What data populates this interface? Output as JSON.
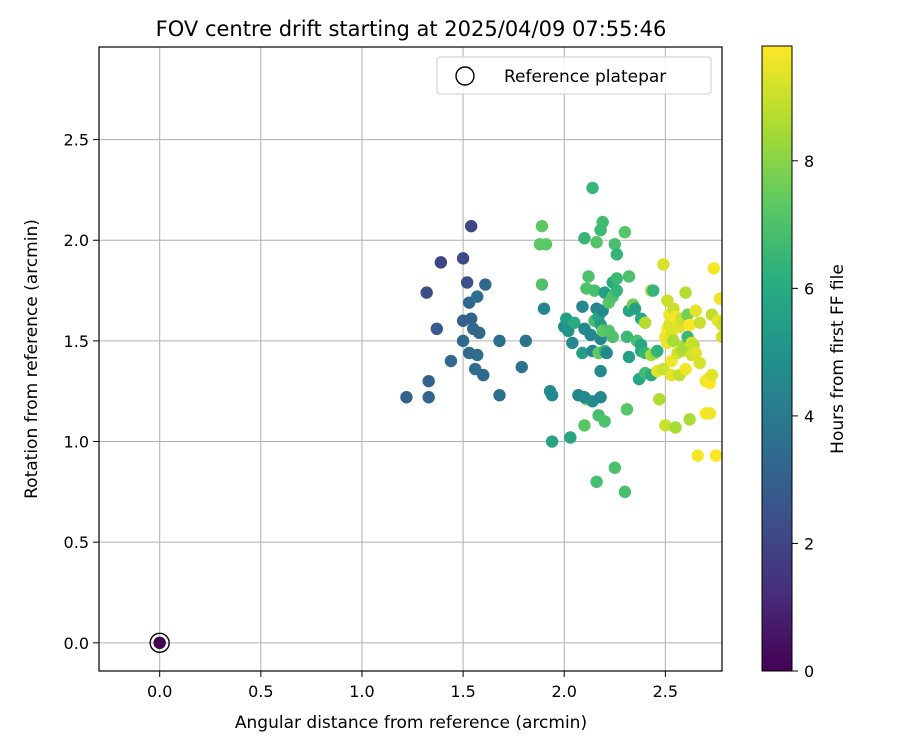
{
  "chart_data": {
    "type": "scatter",
    "title": "FOV centre drift starting at 2025/04/09 07:55:46",
    "xlabel": "Angular distance from reference (arcmin)",
    "ylabel": "Rotation from reference (arcmin)",
    "xlim": [
      -0.3,
      2.78
    ],
    "ylim": [
      -0.14,
      2.96
    ],
    "xticks": [
      "0.0",
      "0.5",
      "1.0",
      "1.5",
      "2.0",
      "2.5"
    ],
    "yticks": [
      "0.0",
      "0.5",
      "1.0",
      "1.5",
      "2.0",
      "2.5"
    ],
    "grid": true,
    "legend": {
      "position": "top-right",
      "entries": [
        "Reference platepar"
      ]
    },
    "colorbar": {
      "label": "Hours from first FF file",
      "min": 0,
      "max": 9.8,
      "ticks": [
        "0",
        "2",
        "4",
        "6",
        "8"
      ],
      "colormap": "viridis"
    },
    "reference": {
      "x": 0.0,
      "y": 0.0,
      "c": 0.0
    },
    "points": [
      {
        "x": 1.22,
        "y": 1.22,
        "c": 3.1
      },
      {
        "x": 1.32,
        "y": 1.74,
        "c": 2.3
      },
      {
        "x": 1.33,
        "y": 1.3,
        "c": 3.1
      },
      {
        "x": 1.33,
        "y": 1.22,
        "c": 3.2
      },
      {
        "x": 1.37,
        "y": 1.56,
        "c": 2.8
      },
      {
        "x": 1.39,
        "y": 1.89,
        "c": 2.0
      },
      {
        "x": 1.44,
        "y": 1.4,
        "c": 3.3
      },
      {
        "x": 1.5,
        "y": 1.91,
        "c": 2.2
      },
      {
        "x": 1.5,
        "y": 1.6,
        "c": 3.0
      },
      {
        "x": 1.5,
        "y": 1.5,
        "c": 3.3
      },
      {
        "x": 1.52,
        "y": 1.79,
        "c": 2.4
      },
      {
        "x": 1.53,
        "y": 1.69,
        "c": 3.2
      },
      {
        "x": 1.54,
        "y": 2.07,
        "c": 2.0
      },
      {
        "x": 1.54,
        "y": 1.61,
        "c": 3.1
      },
      {
        "x": 1.55,
        "y": 1.56,
        "c": 3.3
      },
      {
        "x": 1.53,
        "y": 1.44,
        "c": 3.3
      },
      {
        "x": 1.56,
        "y": 1.36,
        "c": 3.4
      },
      {
        "x": 1.57,
        "y": 1.43,
        "c": 3.5
      },
      {
        "x": 1.57,
        "y": 1.72,
        "c": 3.6
      },
      {
        "x": 1.58,
        "y": 1.54,
        "c": 3.2
      },
      {
        "x": 1.6,
        "y": 1.33,
        "c": 3.3
      },
      {
        "x": 1.61,
        "y": 1.78,
        "c": 3.3
      },
      {
        "x": 1.68,
        "y": 1.5,
        "c": 3.6
      },
      {
        "x": 1.68,
        "y": 1.23,
        "c": 3.6
      },
      {
        "x": 1.79,
        "y": 1.37,
        "c": 3.7
      },
      {
        "x": 1.81,
        "y": 1.5,
        "c": 3.7
      },
      {
        "x": 1.89,
        "y": 2.07,
        "c": 7.3
      },
      {
        "x": 1.88,
        "y": 1.98,
        "c": 7.3
      },
      {
        "x": 1.91,
        "y": 1.98,
        "c": 7.3
      },
      {
        "x": 1.89,
        "y": 1.78,
        "c": 7.0
      },
      {
        "x": 1.9,
        "y": 1.66,
        "c": 4.4
      },
      {
        "x": 1.93,
        "y": 1.25,
        "c": 4.6
      },
      {
        "x": 1.94,
        "y": 1.23,
        "c": 4.6
      },
      {
        "x": 1.94,
        "y": 1.0,
        "c": 5.7
      },
      {
        "x": 2.0,
        "y": 1.57,
        "c": 4.8
      },
      {
        "x": 2.01,
        "y": 1.61,
        "c": 5.5
      },
      {
        "x": 2.02,
        "y": 1.55,
        "c": 5.0
      },
      {
        "x": 2.03,
        "y": 1.02,
        "c": 5.8
      },
      {
        "x": 2.04,
        "y": 1.49,
        "c": 4.6
      },
      {
        "x": 2.05,
        "y": 1.59,
        "c": 6.0
      },
      {
        "x": 2.07,
        "y": 1.23,
        "c": 4.4
      },
      {
        "x": 2.09,
        "y": 1.67,
        "c": 4.6
      },
      {
        "x": 2.09,
        "y": 1.44,
        "c": 5.4
      },
      {
        "x": 2.1,
        "y": 1.56,
        "c": 4.6
      },
      {
        "x": 2.1,
        "y": 2.01,
        "c": 6.5
      },
      {
        "x": 2.11,
        "y": 1.76,
        "c": 7.0
      },
      {
        "x": 2.11,
        "y": 1.21,
        "c": 7.6
      },
      {
        "x": 2.1,
        "y": 1.22,
        "c": 4.6
      },
      {
        "x": 2.1,
        "y": 1.08,
        "c": 7.2
      },
      {
        "x": 2.12,
        "y": 1.82,
        "c": 7.0
      },
      {
        "x": 2.13,
        "y": 1.53,
        "c": 4.5
      },
      {
        "x": 2.14,
        "y": 1.45,
        "c": 4.4
      },
      {
        "x": 2.14,
        "y": 1.2,
        "c": 4.7
      },
      {
        "x": 2.14,
        "y": 2.26,
        "c": 6.5
      },
      {
        "x": 2.15,
        "y": 1.6,
        "c": 6.8
      },
      {
        "x": 2.15,
        "y": 1.75,
        "c": 6.9
      },
      {
        "x": 2.16,
        "y": 1.66,
        "c": 4.4
      },
      {
        "x": 2.16,
        "y": 1.99,
        "c": 7.1
      },
      {
        "x": 2.16,
        "y": 0.8,
        "c": 6.8
      },
      {
        "x": 2.17,
        "y": 1.44,
        "c": 7.4
      },
      {
        "x": 2.17,
        "y": 1.13,
        "c": 6.8
      },
      {
        "x": 2.17,
        "y": 1.62,
        "c": 5.7
      },
      {
        "x": 2.18,
        "y": 2.05,
        "c": 6.6
      },
      {
        "x": 2.18,
        "y": 1.58,
        "c": 5.5
      },
      {
        "x": 2.18,
        "y": 1.51,
        "c": 4.6
      },
      {
        "x": 2.18,
        "y": 1.35,
        "c": 4.6
      },
      {
        "x": 2.18,
        "y": 1.22,
        "c": 4.6
      },
      {
        "x": 2.19,
        "y": 2.09,
        "c": 6.7
      },
      {
        "x": 2.19,
        "y": 1.65,
        "c": 4.6
      },
      {
        "x": 2.19,
        "y": 1.55,
        "c": 7.3
      },
      {
        "x": 2.2,
        "y": 1.1,
        "c": 7.0
      },
      {
        "x": 2.2,
        "y": 1.45,
        "c": 6.5
      },
      {
        "x": 2.2,
        "y": 1.74,
        "c": 5.4
      },
      {
        "x": 2.21,
        "y": 1.44,
        "c": 4.6
      },
      {
        "x": 2.22,
        "y": 1.55,
        "c": 7.1
      },
      {
        "x": 2.22,
        "y": 1.69,
        "c": 7.2
      },
      {
        "x": 2.24,
        "y": 1.79,
        "c": 5.9
      },
      {
        "x": 2.24,
        "y": 1.52,
        "c": 7.0
      },
      {
        "x": 2.24,
        "y": 1.72,
        "c": 7.0
      },
      {
        "x": 2.25,
        "y": 1.98,
        "c": 6.8
      },
      {
        "x": 2.25,
        "y": 0.87,
        "c": 6.9
      },
      {
        "x": 2.26,
        "y": 1.93,
        "c": 6.4
      },
      {
        "x": 2.26,
        "y": 1.81,
        "c": 6.6
      },
      {
        "x": 2.26,
        "y": 1.75,
        "c": 6.4
      },
      {
        "x": 2.3,
        "y": 2.04,
        "c": 7.2
      },
      {
        "x": 2.3,
        "y": 0.75,
        "c": 6.9
      },
      {
        "x": 2.31,
        "y": 1.16,
        "c": 7.2
      },
      {
        "x": 2.31,
        "y": 1.52,
        "c": 6.6
      },
      {
        "x": 2.32,
        "y": 1.82,
        "c": 7.0
      },
      {
        "x": 2.32,
        "y": 1.42,
        "c": 5.5
      },
      {
        "x": 2.32,
        "y": 1.65,
        "c": 5.8
      },
      {
        "x": 2.34,
        "y": 1.68,
        "c": 7.7
      },
      {
        "x": 2.35,
        "y": 1.66,
        "c": 5.6
      },
      {
        "x": 2.36,
        "y": 1.5,
        "c": 6.9
      },
      {
        "x": 2.37,
        "y": 1.31,
        "c": 5.8
      },
      {
        "x": 2.38,
        "y": 1.45,
        "c": 6.1
      },
      {
        "x": 2.38,
        "y": 1.48,
        "c": 5.8
      },
      {
        "x": 2.38,
        "y": 1.61,
        "c": 5.9
      },
      {
        "x": 2.4,
        "y": 1.59,
        "c": 8.7
      },
      {
        "x": 2.4,
        "y": 1.34,
        "c": 6.7
      },
      {
        "x": 2.4,
        "y": 1.44,
        "c": 6.4
      },
      {
        "x": 2.43,
        "y": 1.75,
        "c": 8.6
      },
      {
        "x": 2.43,
        "y": 1.33,
        "c": 6.0
      },
      {
        "x": 2.43,
        "y": 1.43,
        "c": 8.5
      },
      {
        "x": 2.44,
        "y": 1.75,
        "c": 6.4
      },
      {
        "x": 2.45,
        "y": 1.44,
        "c": 8.1
      },
      {
        "x": 2.46,
        "y": 1.45,
        "c": 6.3
      },
      {
        "x": 2.46,
        "y": 1.35,
        "c": 9.4
      },
      {
        "x": 2.47,
        "y": 1.21,
        "c": 8.6
      },
      {
        "x": 2.49,
        "y": 1.36,
        "c": 9.0
      },
      {
        "x": 2.49,
        "y": 1.88,
        "c": 9.2
      },
      {
        "x": 2.5,
        "y": 1.52,
        "c": 9.6
      },
      {
        "x": 2.5,
        "y": 1.08,
        "c": 9.0
      },
      {
        "x": 2.51,
        "y": 1.56,
        "c": 9.7
      },
      {
        "x": 2.51,
        "y": 1.49,
        "c": 9.5
      },
      {
        "x": 2.51,
        "y": 1.7,
        "c": 9.0
      },
      {
        "x": 2.52,
        "y": 1.58,
        "c": 9.3
      },
      {
        "x": 2.52,
        "y": 1.63,
        "c": 9.6
      },
      {
        "x": 2.53,
        "y": 1.53,
        "c": 9.3
      },
      {
        "x": 2.53,
        "y": 1.4,
        "c": 9.6
      },
      {
        "x": 2.53,
        "y": 1.33,
        "c": 9.4
      },
      {
        "x": 2.54,
        "y": 1.66,
        "c": 9.0
      },
      {
        "x": 2.54,
        "y": 1.5,
        "c": 8.5
      },
      {
        "x": 2.55,
        "y": 1.07,
        "c": 8.5
      },
      {
        "x": 2.55,
        "y": 1.62,
        "c": 9.6
      },
      {
        "x": 2.56,
        "y": 1.44,
        "c": 9.2
      },
      {
        "x": 2.57,
        "y": 1.33,
        "c": 8.9
      },
      {
        "x": 2.57,
        "y": 1.57,
        "c": 9.3
      },
      {
        "x": 2.58,
        "y": 1.61,
        "c": 9.0
      },
      {
        "x": 2.58,
        "y": 1.45,
        "c": 8.7
      },
      {
        "x": 2.59,
        "y": 1.47,
        "c": 8.5
      },
      {
        "x": 2.6,
        "y": 1.36,
        "c": 9.6
      },
      {
        "x": 2.6,
        "y": 1.74,
        "c": 8.7
      },
      {
        "x": 2.61,
        "y": 1.63,
        "c": 7.7
      },
      {
        "x": 2.61,
        "y": 1.52,
        "c": 6.6
      },
      {
        "x": 2.62,
        "y": 1.58,
        "c": 9.8
      },
      {
        "x": 2.62,
        "y": 1.11,
        "c": 8.5
      },
      {
        "x": 2.63,
        "y": 1.49,
        "c": 9.2
      },
      {
        "x": 2.63,
        "y": 1.43,
        "c": 9.1
      },
      {
        "x": 2.64,
        "y": 1.48,
        "c": 8.9
      },
      {
        "x": 2.65,
        "y": 1.65,
        "c": 9.4
      },
      {
        "x": 2.65,
        "y": 1.44,
        "c": 9.3
      },
      {
        "x": 2.66,
        "y": 0.93,
        "c": 9.7
      },
      {
        "x": 2.67,
        "y": 1.59,
        "c": 9.0
      },
      {
        "x": 2.67,
        "y": 1.39,
        "c": 9.2
      },
      {
        "x": 2.7,
        "y": 1.3,
        "c": 9.6
      },
      {
        "x": 2.7,
        "y": 1.14,
        "c": 9.7
      },
      {
        "x": 2.71,
        "y": 1.31,
        "c": 9.7
      },
      {
        "x": 2.72,
        "y": 1.29,
        "c": 9.8
      },
      {
        "x": 2.72,
        "y": 1.14,
        "c": 9.6
      },
      {
        "x": 2.73,
        "y": 1.63,
        "c": 8.8
      },
      {
        "x": 2.73,
        "y": 1.33,
        "c": 9.4
      },
      {
        "x": 2.74,
        "y": 1.86,
        "c": 9.7
      },
      {
        "x": 2.75,
        "y": 0.93,
        "c": 9.8
      },
      {
        "x": 2.76,
        "y": 1.6,
        "c": 9.4
      },
      {
        "x": 2.77,
        "y": 1.71,
        "c": 9.6
      },
      {
        "x": 2.78,
        "y": 1.58,
        "c": 9.1
      },
      {
        "x": 2.78,
        "y": 1.52,
        "c": 9.2
      }
    ]
  }
}
